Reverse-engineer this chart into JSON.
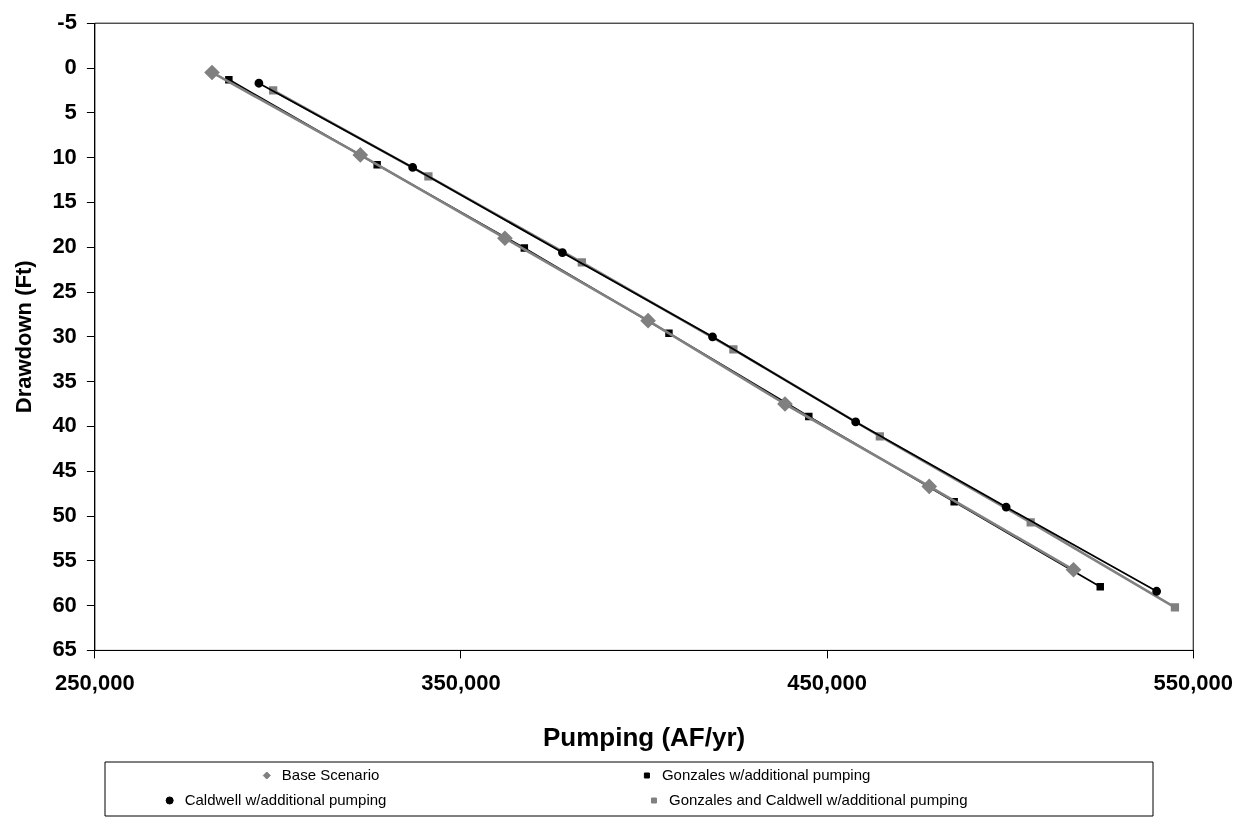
{
  "chart_data": {
    "type": "line",
    "xlabel": "Pumping (AF/yr)",
    "ylabel": "Drawdown (Ft)",
    "xlim": [
      250000,
      550000
    ],
    "xticks": [
      {
        "value": 250000,
        "label": "250,000"
      },
      {
        "value": 350000,
        "label": "350,000"
      },
      {
        "value": 450000,
        "label": "450,000"
      },
      {
        "value": 550000,
        "label": "550,000"
      }
    ],
    "ylim": [
      65,
      -5
    ],
    "yticks": [
      -5,
      0,
      5,
      10,
      15,
      20,
      25,
      30,
      35,
      40,
      45,
      50,
      55,
      60,
      65
    ],
    "grid": false,
    "legend": "bottom",
    "line_style": "solid",
    "series": [
      {
        "name": "Base Scenario",
        "color": "#808080",
        "marker": "diamond",
        "x": [
          282000,
          322500,
          362000,
          401100,
          438500,
          477900,
          517300
        ],
        "values": [
          0.5,
          9.7,
          19.0,
          28.2,
          37.5,
          46.7,
          56.0
        ]
      },
      {
        "name": "Gonzales w/additional pumping",
        "color": "#000000",
        "marker": "square",
        "x": [
          286600,
          327100,
          367300,
          406800,
          445000,
          484700,
          524600
        ],
        "values": [
          1.3,
          10.8,
          20.1,
          29.6,
          38.9,
          48.4,
          57.9
        ]
      },
      {
        "name": "Caldwell w/additional pumping",
        "color": "#000000",
        "marker": "circle",
        "x": [
          294800,
          336800,
          377700,
          418700,
          457800,
          498900,
          540000
        ],
        "values": [
          1.7,
          11.1,
          20.6,
          30.0,
          39.5,
          49.0,
          58.4
        ]
      },
      {
        "name": "Gonzales and Caldwell w/additional pumping",
        "color": "#808080",
        "marker": "square",
        "x": [
          298700,
          341100,
          383000,
          424400,
          464400,
          505600,
          545000
        ],
        "values": [
          2.5,
          12.1,
          21.7,
          31.4,
          41.1,
          50.7,
          60.2
        ]
      }
    ]
  }
}
